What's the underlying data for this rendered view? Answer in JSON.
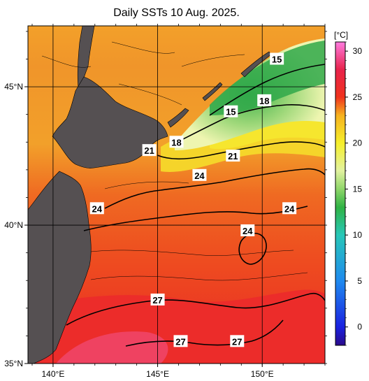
{
  "title": "Daily SSTs 10 Aug. 2025.",
  "map": {
    "lon_ticks": [
      {
        "value": 140,
        "label": "140°E"
      },
      {
        "value": 145,
        "label": "145°E"
      },
      {
        "value": 150,
        "label": "150°E"
      }
    ],
    "lat_ticks": [
      {
        "value": 45,
        "label": "45°N"
      },
      {
        "value": 40,
        "label": "40°N"
      },
      {
        "value": 35,
        "label": "35°N"
      }
    ],
    "lon_range": [
      138.8,
      153.0
    ],
    "lat_range": [
      35.0,
      47.2
    ]
  },
  "colorbar": {
    "unit": "[°C]",
    "ticks": [
      "30",
      "25",
      "20",
      "15",
      "10",
      "5",
      "0"
    ],
    "tick_values": [
      30,
      25,
      20,
      15,
      10,
      5,
      0
    ],
    "range": [
      -2,
      31
    ],
    "colors": {
      "c_-2": "#2a0a8a",
      "c_0": "#1a22e0",
      "c_5": "#1f8aef",
      "c_10": "#28c7b8",
      "c_13": "#2fb344",
      "c_15": "#8fd66a",
      "c_17": "#e2f2a0",
      "c_20": "#f6ef2b",
      "c_23": "#f6b21f",
      "c_25": "#f0321d",
      "c_28": "#e8234c",
      "c_31": "#ff7be0"
    }
  },
  "contour_labels": [
    {
      "text": "15",
      "lon": 150.7,
      "lat": 46.0
    },
    {
      "text": "18",
      "lon": 150.1,
      "lat": 44.5
    },
    {
      "text": "15",
      "lon": 148.5,
      "lat": 44.1
    },
    {
      "text": "18",
      "lon": 145.9,
      "lat": 43.0
    },
    {
      "text": "21",
      "lon": 144.6,
      "lat": 42.7
    },
    {
      "text": "21",
      "lon": 148.6,
      "lat": 42.5
    },
    {
      "text": "24",
      "lon": 147.0,
      "lat": 41.8
    },
    {
      "text": "24",
      "lon": 142.1,
      "lat": 40.6
    },
    {
      "text": "24",
      "lon": 151.3,
      "lat": 40.6
    },
    {
      "text": "24",
      "lon": 149.3,
      "lat": 39.8
    },
    {
      "text": "27",
      "lon": 145.0,
      "lat": 37.3
    },
    {
      "text": "27",
      "lon": 146.1,
      "lat": 35.8
    },
    {
      "text": "27",
      "lon": 148.8,
      "lat": 35.8
    }
  ],
  "land_color": "#555052"
}
